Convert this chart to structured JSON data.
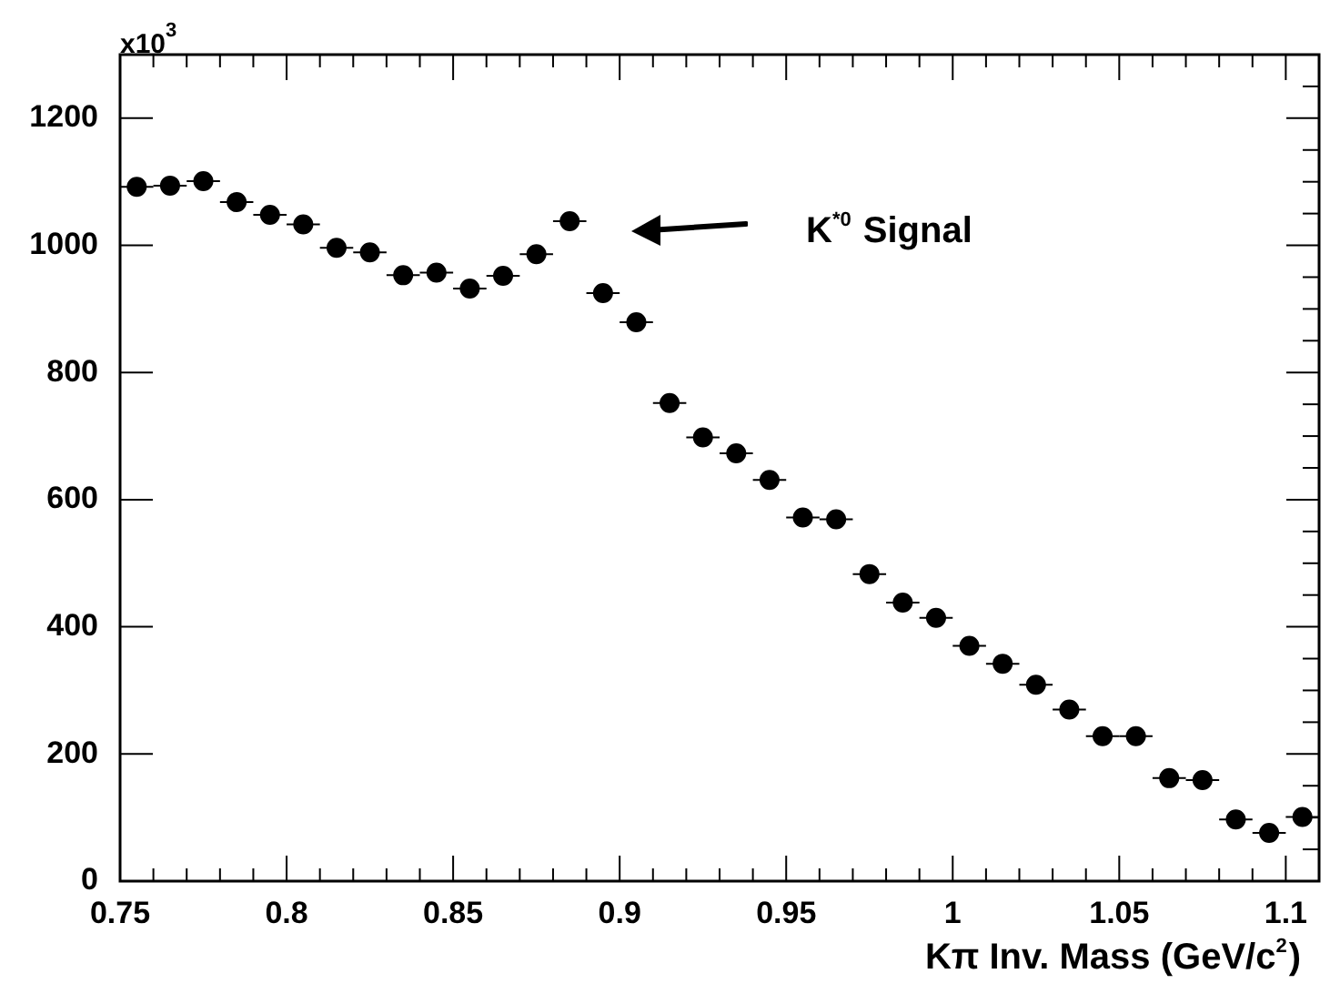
{
  "chart_data": {
    "type": "scatter",
    "xlabel": "Kπ Inv. Mass (GeV/c$^{2}$)",
    "ylabel": "x10$^{3}$",
    "x": [
      0.755,
      0.765,
      0.775,
      0.785,
      0.795,
      0.805,
      0.815,
      0.825,
      0.835,
      0.845,
      0.855,
      0.865,
      0.875,
      0.885,
      0.895,
      0.905,
      0.915,
      0.925,
      0.935,
      0.945,
      0.955,
      0.965,
      0.975,
      0.985,
      0.995,
      1.005,
      1.015,
      1.025,
      1.035,
      1.045,
      1.055,
      1.065,
      1.075,
      1.085,
      1.095,
      1.105
    ],
    "series": [
      {
        "color": "#000000",
        "values": [
          1092,
          1094,
          1101,
          1068,
          1048,
          1033,
          996,
          989,
          953,
          957,
          932,
          952,
          986,
          1038,
          925,
          879,
          752,
          698,
          673,
          631,
          572,
          569,
          483,
          438,
          414,
          370,
          342,
          309,
          270,
          228,
          228,
          162,
          159,
          97,
          76,
          101
        ],
        "xerrors": [
          0.005,
          0.005,
          0.005,
          0.005,
          0.005,
          0.005,
          0.005,
          0.005,
          0.005,
          0.005,
          0.005,
          0.005,
          0.005,
          0.005,
          0.005,
          0.005,
          0.005,
          0.005,
          0.005,
          0.005,
          0.005,
          0.005,
          0.005,
          0.005,
          0.005,
          0.005,
          0.005,
          0.005,
          0.005,
          0.005,
          0.005,
          0.005,
          0.005,
          0.005,
          0.005,
          0.005
        ]
      }
    ],
    "xlim": [
      0.75,
      1.11
    ],
    "xticks": [
      0.75,
      0.8,
      0.85,
      0.9,
      0.95,
      1,
      1.05,
      1.1
    ],
    "ylim": [
      0,
      1300
    ],
    "yticks": [
      0,
      200,
      400,
      600,
      800,
      1000,
      1200
    ],
    "annotations": [
      "K$^{*0}$ Signal"
    ],
    "marker": "circle",
    "grid": false,
    "legend": false
  }
}
